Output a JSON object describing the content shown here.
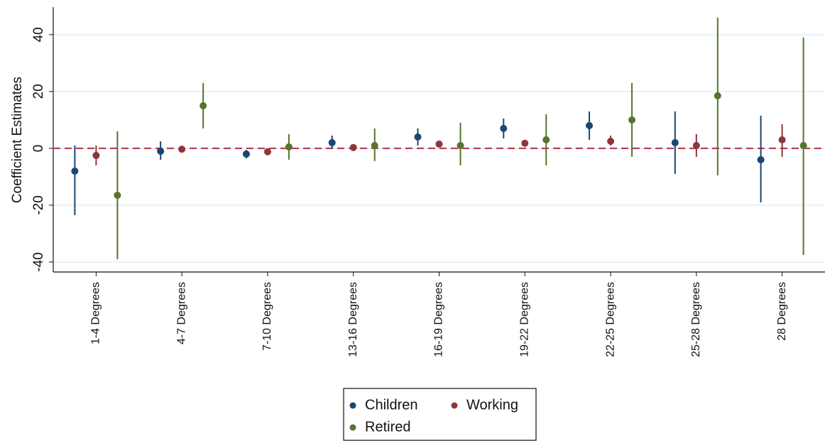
{
  "chart_data": {
    "type": "errorbar",
    "ylabel": "Coefficient Estimates",
    "categories": [
      "1-4 Degrees",
      "4-7 Degrees",
      "7-10 Degrees",
      "13-16 Degrees",
      "16-19 Degrees",
      "19-22 Degrees",
      "22-25 Degrees",
      "25-28 Degrees",
      "28 Degrees"
    ],
    "series": [
      {
        "name": "Children",
        "color": "#1a476f",
        "values": [
          -8,
          -1,
          -2,
          2,
          4,
          7,
          8,
          2,
          -4
        ],
        "lower": [
          -23.5,
          -4,
          -3.5,
          0,
          1,
          3.5,
          3,
          -9,
          -19
        ],
        "upper": [
          1,
          2.5,
          -0.5,
          4.5,
          7,
          10.5,
          13,
          13,
          11.5
        ]
      },
      {
        "name": "Working",
        "color": "#90353b",
        "values": [
          -2.5,
          -0.3,
          -1.2,
          0.3,
          1.5,
          1.8,
          2.5,
          1,
          3
        ],
        "lower": [
          -6,
          -1.2,
          -2,
          -0.3,
          0.5,
          0.8,
          1,
          -3,
          -3
        ],
        "upper": [
          1,
          0.6,
          -0.4,
          0.9,
          2.5,
          2.8,
          4.5,
          5,
          8.5
        ]
      },
      {
        "name": "Retired",
        "color": "#55752f",
        "values": [
          -16.5,
          15,
          0.5,
          1,
          1,
          3,
          10,
          18.5,
          1
        ],
        "lower": [
          -39,
          7,
          -4,
          -4.5,
          -6,
          -6,
          -3,
          -9.5,
          -37.5
        ],
        "upper": [
          6,
          23,
          5,
          7,
          9,
          12,
          23,
          46,
          39
        ]
      }
    ],
    "ylim": [
      -43.5,
      49.7
    ],
    "yticks": [
      -40,
      -20,
      0,
      20,
      40
    ],
    "grid": true,
    "reference_line": {
      "value": 0,
      "color": "#b0304a"
    }
  }
}
